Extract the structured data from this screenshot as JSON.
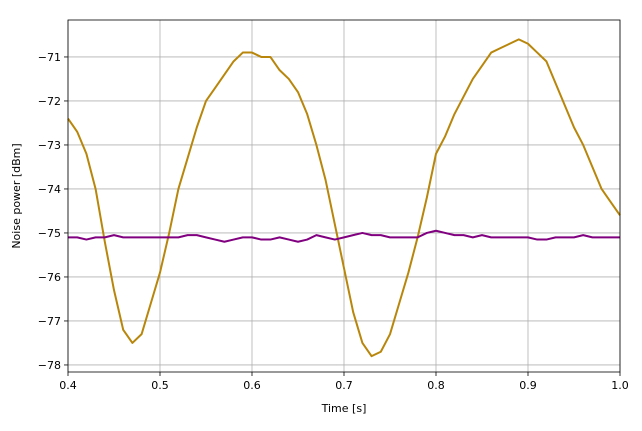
{
  "chart_data": {
    "type": "line",
    "x_label": "Time [s]",
    "y_label": "Noise power [dBm]",
    "x": [
      0.4,
      0.41,
      0.42,
      0.43,
      0.44,
      0.45,
      0.46,
      0.47,
      0.48,
      0.49,
      0.5,
      0.51,
      0.52,
      0.53,
      0.54,
      0.55,
      0.56,
      0.57,
      0.58,
      0.59,
      0.6,
      0.61,
      0.62,
      0.63,
      0.64,
      0.65,
      0.66,
      0.67,
      0.68,
      0.69,
      0.7,
      0.71,
      0.72,
      0.73,
      0.74,
      0.75,
      0.76,
      0.77,
      0.78,
      0.79,
      0.8,
      0.81,
      0.82,
      0.83,
      0.84,
      0.85,
      0.86,
      0.87,
      0.88,
      0.89,
      0.9,
      0.91,
      0.92,
      0.93,
      0.94,
      0.95,
      0.96,
      0.97,
      0.98,
      0.99,
      1.0
    ],
    "series": [
      {
        "color": "#b8860b",
        "values": [
          -72.4,
          -72.7,
          -73.2,
          -74.0,
          -75.2,
          -76.3,
          -77.2,
          -77.5,
          -77.3,
          -76.6,
          -75.9,
          -75.0,
          -74.0,
          -73.3,
          -72.6,
          -72.0,
          -71.7,
          -71.4,
          -71.1,
          -70.9,
          -70.9,
          -71.0,
          -71.0,
          -71.3,
          -71.5,
          -71.8,
          -72.3,
          -73.0,
          -73.8,
          -74.8,
          -75.8,
          -76.8,
          -77.5,
          -77.8,
          -77.7,
          -77.3,
          -76.6,
          -75.9,
          -75.1,
          -74.2,
          -73.2,
          -72.8,
          -72.3,
          -71.9,
          -71.5,
          -71.2,
          -70.9,
          -70.8,
          -70.7,
          -70.6,
          -70.7,
          -70.9,
          -71.1,
          -71.6,
          -72.1,
          -72.6,
          -73.0,
          -73.5,
          -74.0,
          -74.3,
          -74.6
        ]
      },
      {
        "color": "#800080",
        "values": [
          -75.1,
          -75.1,
          -75.15,
          -75.1,
          -75.1,
          -75.05,
          -75.1,
          -75.1,
          -75.1,
          -75.1,
          -75.1,
          -75.1,
          -75.1,
          -75.05,
          -75.05,
          -75.1,
          -75.15,
          -75.2,
          -75.15,
          -75.1,
          -75.1,
          -75.15,
          -75.15,
          -75.1,
          -75.15,
          -75.2,
          -75.15,
          -75.05,
          -75.1,
          -75.15,
          -75.1,
          -75.05,
          -75.0,
          -75.05,
          -75.05,
          -75.1,
          -75.1,
          -75.1,
          -75.1,
          -75.0,
          -74.95,
          -75.0,
          -75.05,
          -75.05,
          -75.1,
          -75.05,
          -75.1,
          -75.1,
          -75.1,
          -75.1,
          -75.1,
          -75.15,
          -75.15,
          -75.1,
          -75.1,
          -75.1,
          -75.05,
          -75.1,
          -75.1,
          -75.1,
          -75.1
        ]
      }
    ],
    "xlim": [
      0.4,
      1.0
    ],
    "ylim": [
      -78.16,
      -70.16
    ],
    "xticks": [
      0.4,
      0.5,
      0.6,
      0.7,
      0.8,
      0.9,
      {
        "value": 1.0,
        "label": "1.0"
      }
    ],
    "yticks": [
      {
        "value": -78,
        "label": "−78"
      },
      {
        "value": -77,
        "label": "−77"
      },
      {
        "value": -76,
        "label": "−76"
      },
      {
        "value": -75,
        "label": "−75"
      },
      {
        "value": -74,
        "label": "−74"
      },
      {
        "value": -73,
        "label": "−73"
      },
      {
        "value": -72,
        "label": "−72"
      },
      {
        "value": -71,
        "label": "−71"
      }
    ],
    "grid": true
  }
}
